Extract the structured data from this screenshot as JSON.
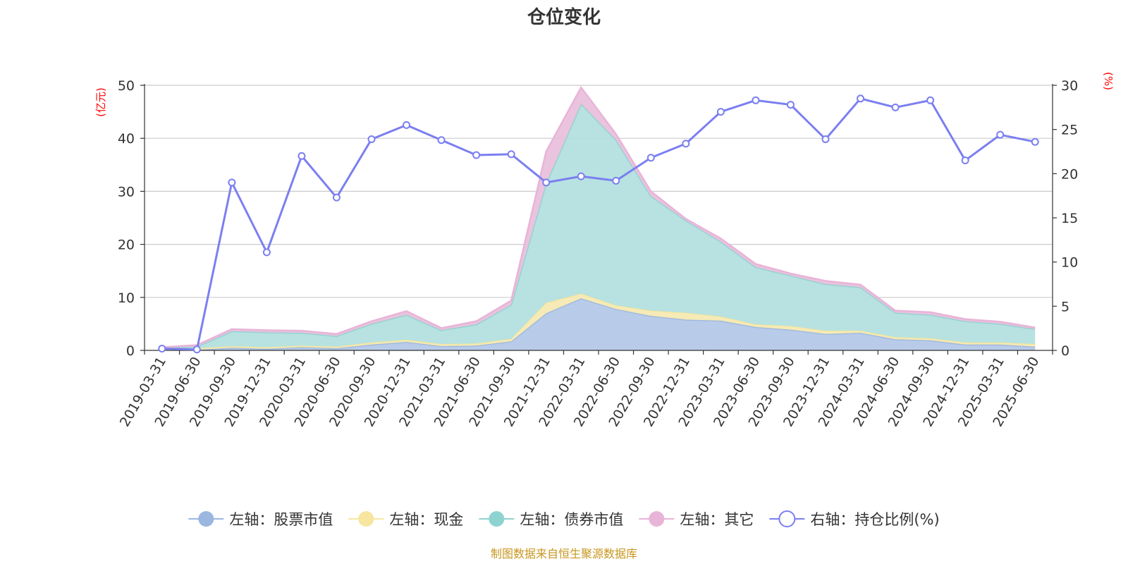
{
  "chart_data": {
    "type": "area",
    "title": "仓位变化",
    "left_axis_unit": "(亿元)",
    "right_axis_unit": "(%)",
    "ylim_left": [
      0,
      50
    ],
    "yticks_left": [
      "0",
      "10",
      "20",
      "30",
      "40",
      "50"
    ],
    "ylim_right": [
      0,
      30
    ],
    "yticks_right": [
      "0",
      "5",
      "10",
      "15",
      "20",
      "25",
      "30"
    ],
    "grid": true,
    "legend_placement": "bottom",
    "categories": [
      "2019-03-31",
      "2019-06-30",
      "2019-09-30",
      "2019-12-31",
      "2020-03-31",
      "2020-06-30",
      "2020-09-30",
      "2020-12-31",
      "2021-03-31",
      "2021-06-30",
      "2021-09-30",
      "2021-12-31",
      "2022-03-31",
      "2022-06-30",
      "2022-09-30",
      "2022-12-31",
      "2023-03-31",
      "2023-06-30",
      "2023-09-30",
      "2023-12-31",
      "2024-03-31",
      "2024-06-30",
      "2024-09-30",
      "2024-12-31",
      "2025-03-31",
      "2025-06-30"
    ],
    "series": [
      {
        "name": "左轴：股票市值",
        "axis": "left",
        "stacked": true,
        "color": "#9bb7e0",
        "fill": "#b4c8e8",
        "values": [
          0.1,
          0.1,
          0.5,
          0.3,
          0.6,
          0.4,
          1.1,
          1.6,
          0.8,
          0.9,
          1.7,
          7.0,
          9.8,
          7.8,
          6.5,
          5.8,
          5.6,
          4.4,
          3.9,
          3.1,
          3.3,
          2.1,
          1.9,
          1.1,
          1.1,
          0.7
        ]
      },
      {
        "name": "左轴：现金",
        "axis": "left",
        "stacked": true,
        "color": "#f7e6a0",
        "fill": "#f6e9b2",
        "values": [
          0.1,
          0.3,
          0.3,
          0.3,
          0.3,
          0.3,
          0.4,
          0.4,
          0.4,
          0.4,
          0.5,
          2.0,
          0.9,
          0.7,
          1.0,
          1.3,
          0.8,
          0.5,
          0.7,
          0.6,
          0.4,
          0.4,
          0.4,
          0.4,
          0.4,
          0.5
        ]
      },
      {
        "name": "左轴：债券市值",
        "axis": "left",
        "stacked": true,
        "color": "#8fd3d1",
        "fill": "#b3e0df",
        "values": [
          0.3,
          0.3,
          2.8,
          2.8,
          2.4,
          2.0,
          3.5,
          4.7,
          2.6,
          3.6,
          6.4,
          22.5,
          35.8,
          31.2,
          21.6,
          17.4,
          14.1,
          10.8,
          9.5,
          8.8,
          8.2,
          4.6,
          4.4,
          4.0,
          3.5,
          2.8
        ]
      },
      {
        "name": "左轴：其它",
        "axis": "left",
        "stacked": true,
        "color": "#e8b4d8",
        "fill": "#e9c1dc",
        "values": [
          0.1,
          0.3,
          0.4,
          0.4,
          0.4,
          0.4,
          0.5,
          0.7,
          0.4,
          0.6,
          0.8,
          6.0,
          3.1,
          1.1,
          0.9,
          0.3,
          0.6,
          0.6,
          0.4,
          0.6,
          0.5,
          0.4,
          0.5,
          0.4,
          0.4,
          0.3
        ]
      },
      {
        "name": "右轴：持仓比例(%)",
        "axis": "right",
        "stacked": false,
        "color": "#7b7ff0",
        "values": [
          0.2,
          0.1,
          19.0,
          11.1,
          22.0,
          17.3,
          23.9,
          25.5,
          23.8,
          22.1,
          22.2,
          19.0,
          19.7,
          19.2,
          21.8,
          23.4,
          27.0,
          28.3,
          27.8,
          23.9,
          28.5,
          27.5,
          28.3,
          21.5,
          24.4,
          23.6
        ]
      }
    ]
  },
  "footer": {
    "source_text": "制图数据来自恒生聚源数据库"
  }
}
